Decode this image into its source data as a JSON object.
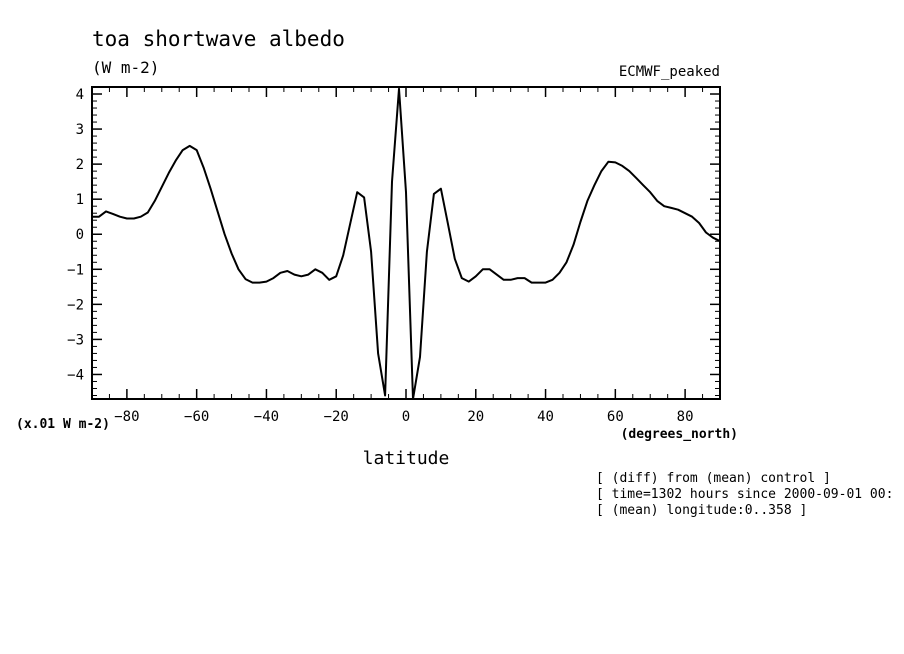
{
  "chart_data": {
    "type": "line",
    "title": "toa shortwave albedo",
    "units": "(W m-2)",
    "series_label": "ECMWF_peaked",
    "xlabel": "latitude",
    "x_unit_label": "(degrees_north)",
    "y_scale_label": "(x.01 W m-2)",
    "xlim": [
      -90,
      90
    ],
    "ylim": [
      -4.7,
      4.2
    ],
    "x_ticks": [
      -80,
      -60,
      -40,
      -20,
      0,
      20,
      40,
      60,
      80
    ],
    "y_ticks": [
      -4,
      -3,
      -2,
      -1,
      0,
      1,
      2,
      3,
      4
    ],
    "grid": false,
    "series": [
      {
        "x": [
          -90,
          -88,
          -86,
          -84,
          -82,
          -80,
          -78,
          -76,
          -74,
          -72,
          -70,
          -68,
          -66,
          -64,
          -62,
          -60,
          -58,
          -56,
          -54,
          -52,
          -50,
          -48,
          -46,
          -44,
          -42,
          -40,
          -38,
          -36,
          -34,
          -32,
          -30,
          -28,
          -26,
          -24,
          -22,
          -20,
          -18,
          -16,
          -14,
          -12,
          -10,
          -8,
          -6,
          -4,
          -2,
          0,
          2,
          4,
          6,
          8,
          10,
          12,
          14,
          16,
          18,
          20,
          22,
          24,
          26,
          28,
          30,
          32,
          34,
          36,
          38,
          40,
          42,
          44,
          46,
          48,
          50,
          52,
          54,
          56,
          58,
          60,
          62,
          64,
          66,
          68,
          70,
          72,
          74,
          76,
          78,
          80,
          82,
          84,
          86,
          88,
          90
        ],
        "y": [
          0.5,
          0.5,
          0.65,
          0.58,
          0.5,
          0.45,
          0.45,
          0.5,
          0.62,
          0.95,
          1.35,
          1.75,
          2.1,
          2.4,
          2.52,
          2.4,
          1.9,
          1.3,
          0.65,
          0.0,
          -0.55,
          -1.0,
          -1.28,
          -1.38,
          -1.38,
          -1.35,
          -1.25,
          -1.1,
          -1.05,
          -1.15,
          -1.2,
          -1.15,
          -1.0,
          -1.1,
          -1.3,
          -1.2,
          -0.6,
          0.3,
          1.2,
          1.05,
          -0.5,
          -3.4,
          -4.6,
          1.5,
          4.15,
          1.2,
          -4.7,
          -3.5,
          -0.5,
          1.15,
          1.3,
          0.3,
          -0.7,
          -1.25,
          -1.35,
          -1.2,
          -1.0,
          -1.0,
          -1.15,
          -1.3,
          -1.3,
          -1.25,
          -1.25,
          -1.38,
          -1.38,
          -1.38,
          -1.3,
          -1.1,
          -0.8,
          -0.3,
          0.35,
          0.95,
          1.4,
          1.8,
          2.07,
          2.05,
          1.95,
          1.8,
          1.6,
          1.4,
          1.2,
          0.95,
          0.8,
          0.75,
          0.7,
          0.6,
          0.5,
          0.32,
          0.05,
          -0.1,
          -0.2
        ]
      }
    ]
  },
  "notes": [
    "[ (diff) from (mean) control ]",
    "[ time=1302 hours since 2000-09-01 00:",
    "[ (mean) longitude:0..358 ]"
  ]
}
